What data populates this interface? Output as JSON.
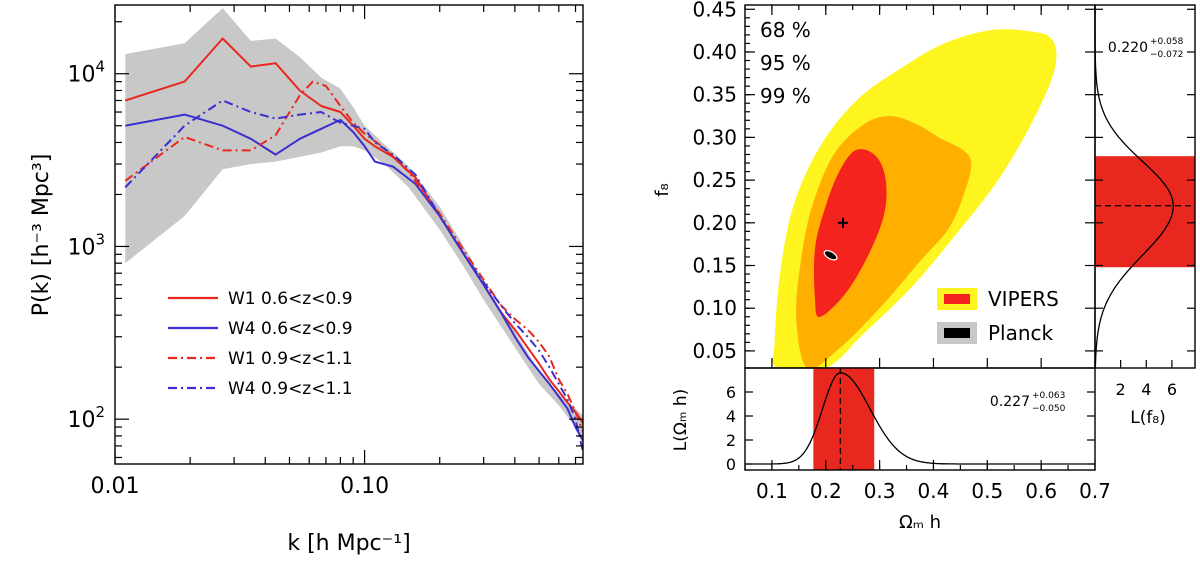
{
  "colors": {
    "red": "#e8281e",
    "blue": "#3a2fd0",
    "band": "#c8c8c8",
    "c68": "#f5231e",
    "c95": "#ffaf00",
    "c99": "#fff51e",
    "black": "#000000"
  },
  "chart_data": [
    {
      "type": "line",
      "id": "power-spectrum",
      "xlabel": "k  [h Mpc⁻¹]",
      "ylabel": "P(k)  [h⁻³ Mpc³]",
      "xscale": "log",
      "yscale": "log",
      "xlim": [
        0.01,
        0.75
      ],
      "ylim": [
        55,
        25000
      ],
      "xticks": [
        {
          "value": 0.01,
          "label": "0.01"
        },
        {
          "value": 0.1,
          "label": "0.10"
        }
      ],
      "yticks": [
        {
          "value": 100,
          "base": "10",
          "exp": "2"
        },
        {
          "value": 1000,
          "base": "10",
          "exp": "3"
        },
        {
          "value": 10000,
          "base": "10",
          "exp": "4"
        }
      ],
      "band": {
        "x": [
          0.011,
          0.019,
          0.027,
          0.035,
          0.044,
          0.055,
          0.067,
          0.08,
          0.09,
          0.1,
          0.12,
          0.15,
          0.2,
          0.25,
          0.3,
          0.4,
          0.5,
          0.6,
          0.7,
          0.75
        ],
        "upper": [
          13000,
          15000,
          24000,
          15500,
          16000,
          12500,
          9500,
          8200,
          6400,
          5000,
          3900,
          2900,
          1700,
          1000,
          620,
          320,
          190,
          140,
          115,
          105
        ],
        "lower": [
          800,
          1500,
          2800,
          3000,
          3100,
          3300,
          3500,
          3800,
          3800,
          3600,
          3000,
          2200,
          1250,
          760,
          490,
          260,
          160,
          120,
          90,
          75
        ]
      },
      "series": [
        {
          "name": "W1  0.6<z<0.9",
          "color": "#e8281e",
          "dash": "solid",
          "x": [
            0.011,
            0.019,
            0.027,
            0.035,
            0.044,
            0.055,
            0.067,
            0.08,
            0.09,
            0.1,
            0.11,
            0.13,
            0.16,
            0.2,
            0.25,
            0.3,
            0.35,
            0.4,
            0.45,
            0.5,
            0.55,
            0.6,
            0.65,
            0.7,
            0.75
          ],
          "y": [
            7000,
            9000,
            16000,
            11000,
            11500,
            8000,
            6500,
            6000,
            5000,
            4200,
            3800,
            3300,
            2500,
            1500,
            900,
            600,
            420,
            330,
            260,
            210,
            170,
            145,
            125,
            110,
            95
          ]
        },
        {
          "name": "W4  0.6<z<0.9",
          "color": "#3a2fd0",
          "dash": "solid",
          "x": [
            0.011,
            0.019,
            0.027,
            0.035,
            0.044,
            0.055,
            0.067,
            0.08,
            0.09,
            0.1,
            0.11,
            0.13,
            0.16,
            0.2,
            0.25,
            0.3,
            0.35,
            0.4,
            0.45,
            0.5,
            0.55,
            0.6,
            0.65,
            0.7,
            0.75
          ],
          "y": [
            5000,
            5800,
            5000,
            4200,
            3400,
            4200,
            4800,
            5400,
            4600,
            3800,
            3100,
            2900,
            2300,
            1500,
            900,
            600,
            420,
            300,
            230,
            190,
            160,
            135,
            115,
            90,
            75
          ]
        },
        {
          "name": "W1  0.9<z<1.1",
          "color": "#e8281e",
          "dash": "dashdot",
          "x": [
            0.011,
            0.019,
            0.027,
            0.035,
            0.044,
            0.055,
            0.062,
            0.07,
            0.08,
            0.09,
            0.1,
            0.12,
            0.15,
            0.2,
            0.25,
            0.3,
            0.35,
            0.4,
            0.45,
            0.5,
            0.55,
            0.6,
            0.65,
            0.7,
            0.75
          ],
          "y": [
            2400,
            4300,
            3600,
            3600,
            4400,
            7500,
            9000,
            8500,
            6500,
            5200,
            4500,
            3700,
            2700,
            1550,
            950,
            640,
            460,
            380,
            330,
            280,
            230,
            170,
            140,
            110,
            85
          ]
        },
        {
          "name": "W4  0.9<z<1.1",
          "color": "#3a2fd0",
          "dash": "dashdot",
          "x": [
            0.011,
            0.019,
            0.027,
            0.035,
            0.044,
            0.055,
            0.067,
            0.08,
            0.09,
            0.1,
            0.11,
            0.13,
            0.16,
            0.2,
            0.25,
            0.3,
            0.35,
            0.4,
            0.45,
            0.5,
            0.55,
            0.6,
            0.65,
            0.7,
            0.75
          ],
          "y": [
            2200,
            5000,
            7000,
            6000,
            5500,
            5800,
            6000,
            5200,
            5000,
            4800,
            4000,
            3400,
            2600,
            1500,
            900,
            620,
            460,
            360,
            300,
            250,
            200,
            160,
            130,
            100,
            65
          ]
        }
      ]
    },
    {
      "type": "contour",
      "id": "fsigma8-vs-omegah",
      "xlabel": "Ωₘ h",
      "ylabel": "f₈",
      "xlim": [
        0.05,
        0.7
      ],
      "ylim": [
        0.03,
        0.455
      ],
      "xticks": [
        0.1,
        0.2,
        0.3,
        0.4,
        0.5,
        0.6,
        0.7
      ],
      "xtick_labels": [
        "0.1",
        "0.2",
        "0.3",
        "0.4",
        "0.5",
        "0.6",
        "0.7"
      ],
      "yticks": [
        0.05,
        0.1,
        0.15,
        0.2,
        0.25,
        0.3,
        0.35,
        0.4,
        0.45
      ],
      "ytick_labels": [
        "0.05",
        "0.10",
        "0.15",
        "0.20",
        "0.25",
        "0.30",
        "0.35",
        "0.40",
        "0.45"
      ],
      "levels": [
        {
          "label": "68 %",
          "color": "#f5231e",
          "outline": [
            [
              0.19,
              0.09
            ],
            [
              0.24,
              0.12
            ],
            [
              0.285,
              0.17
            ],
            [
              0.31,
              0.215
            ],
            [
              0.31,
              0.255
            ],
            [
              0.29,
              0.28
            ],
            [
              0.255,
              0.285
            ],
            [
              0.225,
              0.26
            ],
            [
              0.2,
              0.22
            ],
            [
              0.18,
              0.17
            ],
            [
              0.18,
              0.11
            ]
          ]
        },
        {
          "label": "95 %",
          "color": "#ffaf00",
          "outline": [
            [
              0.165,
              0.03
            ],
            [
              0.22,
              0.05
            ],
            [
              0.3,
              0.1
            ],
            [
              0.375,
              0.155
            ],
            [
              0.43,
              0.195
            ],
            [
              0.46,
              0.24
            ],
            [
              0.47,
              0.27
            ],
            [
              0.455,
              0.285
            ],
            [
              0.41,
              0.3
            ],
            [
              0.37,
              0.315
            ],
            [
              0.32,
              0.325
            ],
            [
              0.27,
              0.315
            ],
            [
              0.215,
              0.28
            ],
            [
              0.175,
              0.22
            ],
            [
              0.155,
              0.16
            ],
            [
              0.145,
              0.09
            ]
          ]
        },
        {
          "label": "99 %",
          "color": "#fff51e",
          "outline": [
            [
              0.11,
              0.03
            ],
            [
              0.2,
              0.03
            ],
            [
              0.27,
              0.07
            ],
            [
              0.36,
              0.125
            ],
            [
              0.44,
              0.185
            ],
            [
              0.52,
              0.25
            ],
            [
              0.585,
              0.32
            ],
            [
              0.625,
              0.38
            ],
            [
              0.62,
              0.415
            ],
            [
              0.57,
              0.425
            ],
            [
              0.5,
              0.425
            ],
            [
              0.42,
              0.41
            ],
            [
              0.35,
              0.385
            ],
            [
              0.26,
              0.345
            ],
            [
              0.19,
              0.29
            ],
            [
              0.14,
              0.22
            ],
            [
              0.115,
              0.14
            ],
            [
              0.105,
              0.06
            ]
          ]
        }
      ],
      "best_fit": {
        "x": 0.232,
        "y": 0.2
      },
      "planck": {
        "x": 0.209,
        "y": 0.162
      },
      "legend": [
        {
          "label": "VIPERS",
          "fill": "#f5231e",
          "border": "#fff51e"
        },
        {
          "label": "Planck",
          "fill": "#000000",
          "border": "#c8c8c8"
        }
      ]
    },
    {
      "type": "line",
      "id": "marginal-omegah",
      "xlabel": "Ωₘ h",
      "ylabel": "L(Ωₘ h)",
      "xlim": [
        0.05,
        0.7
      ],
      "ylim": [
        -0.5,
        8
      ],
      "yticks": [
        0,
        2,
        4,
        6
      ],
      "ytick_labels": [
        "0",
        "2",
        "4",
        "6"
      ],
      "interval": [
        0.177,
        0.29
      ],
      "peak": 0.227,
      "annotation": {
        "value": "0.227",
        "plus": "+0.063",
        "minus": "−0.050"
      }
    },
    {
      "type": "line",
      "id": "marginal-fsigma8",
      "xlabel": "L(f₈)",
      "xlim": [
        0,
        7.8
      ],
      "ylim": [
        0.03,
        0.455
      ],
      "xticks": [
        2,
        4,
        6
      ],
      "xtick_labels": [
        "2",
        "4",
        "6"
      ],
      "interval": [
        0.148,
        0.278
      ],
      "peak": 0.22,
      "annotation": {
        "value": "0.220",
        "plus": "+0.058",
        "minus": "−0.072"
      }
    }
  ]
}
